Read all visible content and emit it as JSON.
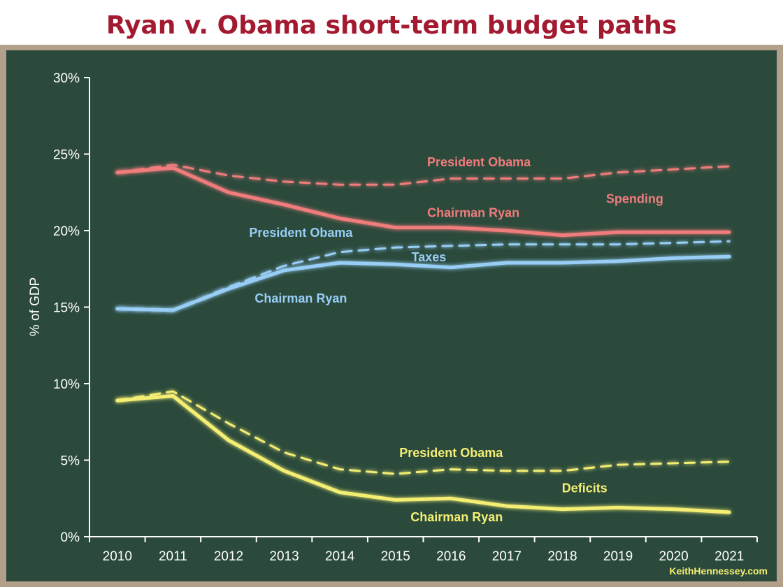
{
  "title": "Ryan v. Obama short-term budget paths",
  "credit": "KeithHennessey.com",
  "colors": {
    "background": "#2b4a3c",
    "frame": "#b2a08a",
    "title": "#a31a30",
    "spending": "#f07c7c",
    "taxes": "#98cdf6",
    "deficits": "#f4ef73",
    "axis": "#ffffff"
  },
  "chart_data": {
    "type": "line",
    "title": "Ryan v. Obama short-term budget paths",
    "xlabel": "",
    "ylabel": "% of GDP",
    "x": [
      "2010",
      "2011",
      "2012",
      "2013",
      "2014",
      "2015",
      "2016",
      "2017",
      "2018",
      "2019",
      "2020",
      "2021"
    ],
    "ylim": [
      0,
      30
    ],
    "yticks": [
      "0%",
      "5%",
      "10%",
      "15%",
      "20%",
      "25%",
      "30%"
    ],
    "grid": false,
    "series": [
      {
        "name": "President Obama",
        "group": "Spending",
        "style": "dashed",
        "color": "#f07c7c",
        "values": [
          23.8,
          24.3,
          23.6,
          23.2,
          23.0,
          23.0,
          23.4,
          23.4,
          23.4,
          23.8,
          24.0,
          24.2
        ]
      },
      {
        "name": "Chairman Ryan",
        "group": "Spending",
        "style": "solid",
        "color": "#f07c7c",
        "values": [
          23.8,
          24.1,
          22.5,
          21.7,
          20.8,
          20.2,
          20.2,
          20.0,
          19.7,
          19.9,
          19.9,
          19.9
        ]
      },
      {
        "name": "President Obama",
        "group": "Taxes",
        "style": "dashed",
        "color": "#98cdf6",
        "values": [
          14.9,
          14.8,
          16.3,
          17.7,
          18.6,
          18.9,
          19.0,
          19.1,
          19.1,
          19.1,
          19.2,
          19.3
        ]
      },
      {
        "name": "Chairman Ryan",
        "group": "Taxes",
        "style": "solid",
        "color": "#98cdf6",
        "values": [
          14.9,
          14.8,
          16.2,
          17.4,
          17.9,
          17.8,
          17.6,
          17.9,
          17.9,
          18.0,
          18.2,
          18.3
        ]
      },
      {
        "name": "President Obama",
        "group": "Deficits",
        "style": "dashed",
        "color": "#f4ef73",
        "values": [
          8.9,
          9.5,
          7.4,
          5.5,
          4.4,
          4.1,
          4.4,
          4.3,
          4.3,
          4.7,
          4.8,
          4.9
        ]
      },
      {
        "name": "Chairman Ryan",
        "group": "Deficits",
        "style": "solid",
        "color": "#f4ef73",
        "values": [
          8.9,
          9.2,
          6.3,
          4.3,
          2.9,
          2.4,
          2.5,
          2.0,
          1.8,
          1.9,
          1.8,
          1.6
        ]
      }
    ],
    "annotations": [
      {
        "text": "President Obama",
        "color": "#f07c7c",
        "x": 2016.5,
        "y": 24.2
      },
      {
        "text": "Spending",
        "color": "#f07c7c",
        "x": 2019.3,
        "y": 21.8
      },
      {
        "text": "Chairman Ryan",
        "color": "#f07c7c",
        "x": 2016.4,
        "y": 20.9
      },
      {
        "text": "President Obama",
        "color": "#98cdf6",
        "x": 2013.3,
        "y": 19.6
      },
      {
        "text": "Taxes",
        "color": "#98cdf6",
        "x": 2015.6,
        "y": 18.0
      },
      {
        "text": "Chairman Ryan",
        "color": "#98cdf6",
        "x": 2013.3,
        "y": 15.3
      },
      {
        "text": "President Obama",
        "color": "#f4ef73",
        "x": 2016.0,
        "y": 5.2
      },
      {
        "text": "Deficits",
        "color": "#f4ef73",
        "x": 2018.4,
        "y": 2.9
      },
      {
        "text": "Chairman Ryan",
        "color": "#f4ef73",
        "x": 2016.1,
        "y": 1.0
      }
    ]
  }
}
